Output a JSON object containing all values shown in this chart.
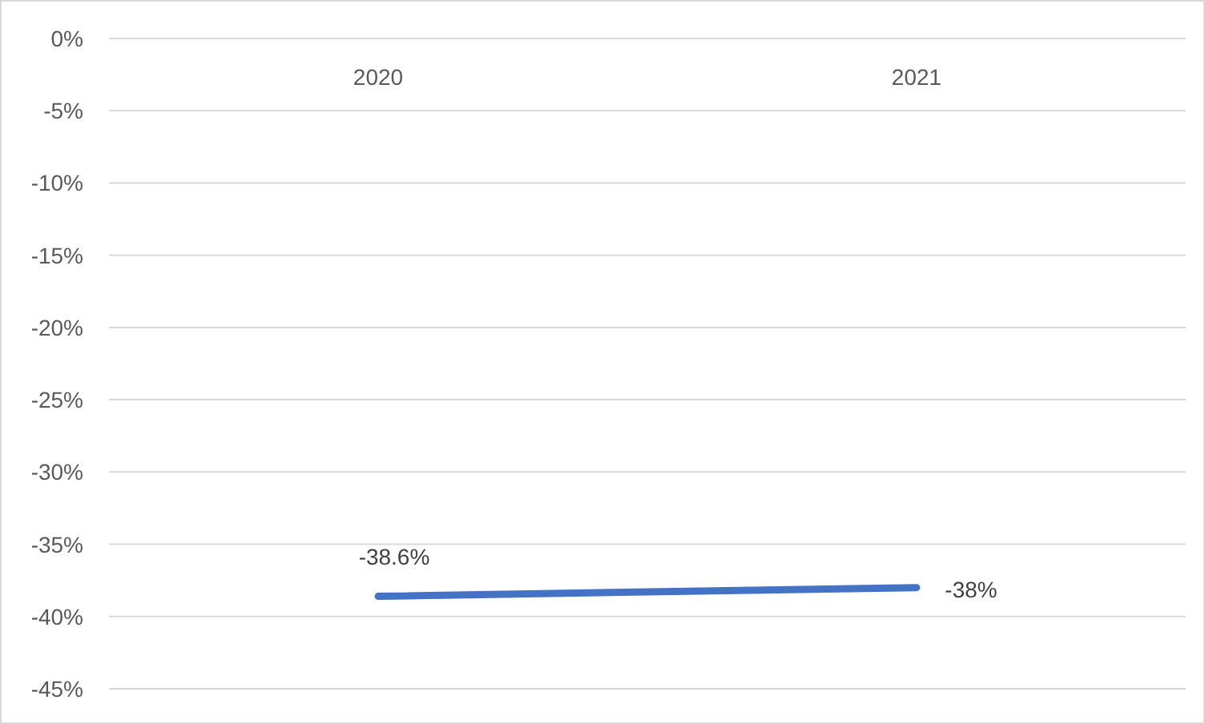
{
  "chart_data": {
    "type": "line",
    "categories": [
      "2020",
      "2021"
    ],
    "series": [
      {
        "color": "#4472c4",
        "values": [
          -38.6,
          -38
        ],
        "value_labels": [
          "-38.6%",
          "-38%"
        ]
      }
    ],
    "ylim": [
      -45,
      0
    ],
    "yticks": [
      {
        "value": 0,
        "label": "0%"
      },
      {
        "value": -5,
        "label": "-5%"
      },
      {
        "value": -10,
        "label": "-10%"
      },
      {
        "value": -15,
        "label": "-15%"
      },
      {
        "value": -20,
        "label": "-20%"
      },
      {
        "value": -25,
        "label": "-25%"
      },
      {
        "value": -30,
        "label": "-30%"
      },
      {
        "value": -35,
        "label": "-35%"
      },
      {
        "value": -40,
        "label": "-40%"
      },
      {
        "value": -45,
        "label": "-45%"
      }
    ],
    "grid": "y"
  }
}
